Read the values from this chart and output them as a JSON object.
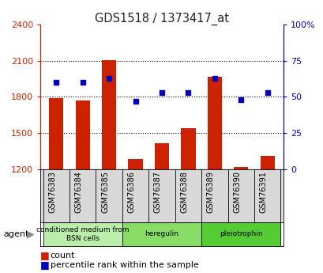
{
  "title": "GDS1518 / 1373417_at",
  "samples": [
    "GSM76383",
    "GSM76384",
    "GSM76385",
    "GSM76386",
    "GSM76387",
    "GSM76388",
    "GSM76389",
    "GSM76390",
    "GSM76391"
  ],
  "counts": [
    1790,
    1770,
    2105,
    1285,
    1415,
    1540,
    1970,
    1220,
    1310
  ],
  "percentile_ranks": [
    60,
    60,
    63,
    47,
    53,
    53,
    63,
    48,
    53
  ],
  "ylim_left": [
    1200,
    2400
  ],
  "ylim_right": [
    0,
    100
  ],
  "yticks_left": [
    1200,
    1500,
    1800,
    2100,
    2400
  ],
  "yticks_right": [
    0,
    25,
    50,
    75,
    100
  ],
  "groups": [
    {
      "label": "conditioned medium from\nBSN cells",
      "start": 0,
      "end": 3,
      "color": "#bbeeaa"
    },
    {
      "label": "heregulin",
      "start": 3,
      "end": 6,
      "color": "#88dd66"
    },
    {
      "label": "pleiotrophin",
      "start": 6,
      "end": 9,
      "color": "#55cc33"
    }
  ],
  "bar_color": "#cc2200",
  "dot_color": "#0000bb",
  "bar_width": 0.55,
  "bg_color": "#d8d8d8",
  "plot_bg": "#ffffff",
  "title_color": "#222222",
  "left_axis_color": "#cc2200",
  "right_axis_color": "#0000bb"
}
